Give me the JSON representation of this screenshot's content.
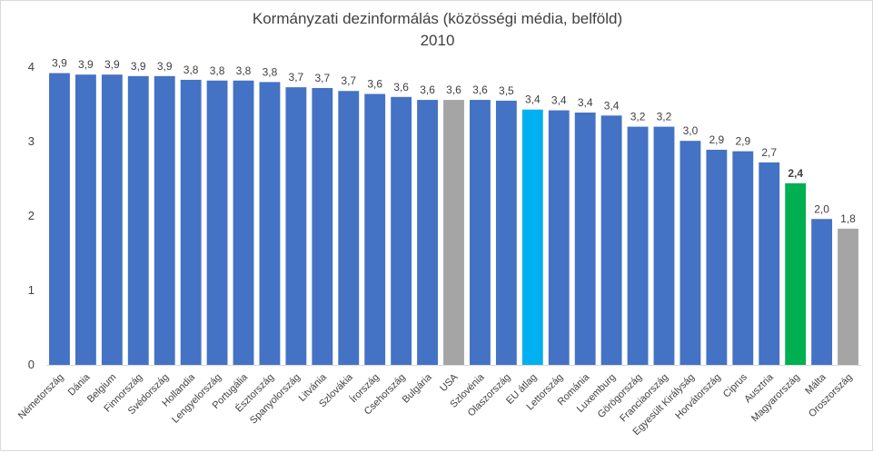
{
  "chart_data": {
    "type": "bar",
    "title": "Kormányzati dezinformálás (közösségi média, belföld)",
    "subtitle": "2010",
    "xlabel": "",
    "ylabel": "",
    "ylim": [
      0,
      4
    ],
    "yticks": [
      0,
      1,
      2,
      3,
      4
    ],
    "grid": false,
    "categories": [
      "Németország",
      "Dánia",
      "Belgium",
      "Finnország",
      "Svédország",
      "Hollandia",
      "Lengyelország",
      "Portugália",
      "Észtország",
      "Spanyolország",
      "Litvánia",
      "Szlovákia",
      "Írország",
      "Csehország",
      "Bulgária",
      "USA",
      "Szlovénia",
      "Olaszország",
      "EU átlag",
      "Lettország",
      "Románia",
      "Luxemburg",
      "Görögország",
      "Franciaország",
      "Egyesült Királyság",
      "Horvátország",
      "Ciprus",
      "Ausztria",
      "Magyarország",
      "Málta",
      "Oroszország"
    ],
    "values": [
      3.92,
      3.9,
      3.9,
      3.88,
      3.88,
      3.83,
      3.82,
      3.82,
      3.8,
      3.73,
      3.72,
      3.68,
      3.64,
      3.6,
      3.56,
      3.56,
      3.56,
      3.55,
      3.43,
      3.42,
      3.39,
      3.35,
      3.2,
      3.2,
      3.01,
      2.89,
      2.87,
      2.72,
      2.44,
      1.96,
      1.83
    ],
    "data_labels": [
      "3,9",
      "3,9",
      "3,9",
      "3,9",
      "3,9",
      "3,8",
      "3,8",
      "3,8",
      "3,8",
      "3,7",
      "3,7",
      "3,7",
      "3,6",
      "3,6",
      "3,6",
      "3,6",
      "3,6",
      "3,5",
      "3,4",
      "3,4",
      "3,4",
      "3,4",
      "3,2",
      "3,2",
      "3,0",
      "2,9",
      "2,9",
      "2,7",
      "2,4",
      "2,0",
      "1,8"
    ],
    "bar_colors": [
      "#4472c4",
      "#4472c4",
      "#4472c4",
      "#4472c4",
      "#4472c4",
      "#4472c4",
      "#4472c4",
      "#4472c4",
      "#4472c4",
      "#4472c4",
      "#4472c4",
      "#4472c4",
      "#4472c4",
      "#4472c4",
      "#4472c4",
      "#a5a5a5",
      "#4472c4",
      "#4472c4",
      "#00b0f0",
      "#4472c4",
      "#4472c4",
      "#4472c4",
      "#4472c4",
      "#4472c4",
      "#4472c4",
      "#4472c4",
      "#4472c4",
      "#4472c4",
      "#00b050",
      "#4472c4",
      "#a5a5a5"
    ],
    "bold_labels": [
      "Magyarország"
    ]
  }
}
